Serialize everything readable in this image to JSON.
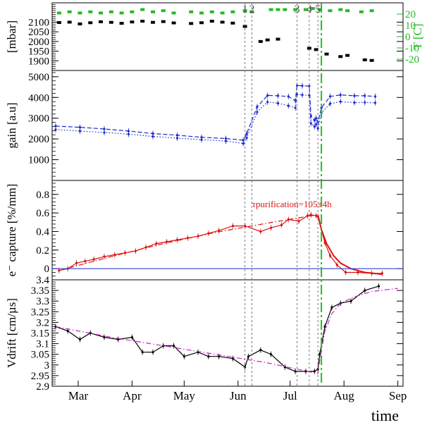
{
  "colors": {
    "pressure": "#000000",
    "temperature": "#22bb22",
    "gain_dashed": "#1a2acc",
    "gain_dotted": "#1a2acc",
    "capture": "#dd1111",
    "zero_line": "#3344cc",
    "vdrift_solid": "#000000",
    "vdrift_fit": "#cc22cc",
    "event_lines": "#777777",
    "event_green": "#22bb22"
  },
  "chart_data": {
    "type": "line",
    "x_unit": "month (day-of-year scale)",
    "x_ticks": [
      {
        "label": "Mar",
        "x": 61
      },
      {
        "label": "Apr",
        "x": 92
      },
      {
        "label": "May",
        "x": 122
      },
      {
        "label": "Jun",
        "x": 153
      },
      {
        "label": "Jul",
        "x": 183
      },
      {
        "label": "Aug",
        "x": 214
      },
      {
        "label": "Sep",
        "x": 245
      }
    ],
    "xlim": [
      46,
      248
    ],
    "xlabel": "time",
    "event_markers": [
      {
        "label": "1",
        "x": 157
      },
      {
        "label": "2",
        "x": 161
      },
      {
        "label": "3",
        "x": 187
      },
      {
        "label": "4",
        "x": 194
      },
      {
        "label": "5",
        "x": 199
      }
    ],
    "green_marker_x": 201,
    "panels": [
      {
        "id": "pressure_temperature",
        "ylabel": "[mbar]",
        "ylim": [
          1850,
          2200
        ],
        "yticks": [
          1900,
          1950,
          2000,
          2050,
          2100
        ],
        "ytick_labels": [
          "1900",
          "1950",
          "2000",
          "2050",
          "2100"
        ],
        "y2label": "T [C]",
        "y2lim": [
          -30,
          30
        ],
        "y2ticks": [
          -20,
          -10,
          0,
          10,
          20
        ],
        "series": [
          {
            "role": "pressure",
            "style": "markers",
            "x": [
              50,
              56,
              62,
              68,
              74,
              80,
              86,
              92,
              98,
              104,
              110,
              116,
              126,
              132,
              138,
              144,
              150,
              157,
              166,
              170,
              176,
              194,
              198,
              204,
              212,
              216,
              226,
              230
            ],
            "y": [
              2098,
              2100,
              2091,
              2097,
              2102,
              2099,
              2094,
              2101,
              2105,
              2099,
              2103,
              2096,
              2093,
              2097,
              2105,
              2100,
              2095,
              2078,
              2000,
              2008,
              2012,
              1965,
              1958,
              1935,
              1922,
              1928,
              1905,
              1902
            ]
          },
          {
            "role": "temperature",
            "style": "markers",
            "x": [
              50,
              56,
              62,
              68,
              74,
              80,
              86,
              92,
              98,
              104,
              110,
              116,
              126,
              132,
              138,
              144,
              150,
              157,
              161,
              172,
              176,
              180,
              186,
              192,
              196,
              200,
              206,
              212,
              216,
              224,
              230
            ],
            "y": [
              21,
              22,
              21,
              22,
              21,
              22,
              21,
              22,
              24,
              22,
              23,
              21,
              22,
              21,
              22,
              21,
              22,
              23,
              22,
              24,
              24,
              24,
              24,
              24,
              25,
              24,
              23,
              24,
              23,
              22,
              23
            ]
          }
        ]
      },
      {
        "id": "gain",
        "ylabel": "gain [a.u]",
        "ylim": [
          0,
          5300
        ],
        "yticks": [
          1000,
          2000,
          3000,
          4000,
          5000
        ],
        "series": [
          {
            "role": "gain_dashed",
            "style": "dashed",
            "x": [
              48,
              62,
              76,
              90,
              104,
              118,
              132,
              146,
              156,
              158,
              164,
              170,
              176,
              182,
              186,
              187,
              190,
              194,
              195,
              197,
              198,
              199,
              201,
              206,
              212,
              220,
              226,
              232
            ],
            "y": [
              2620,
              2560,
              2480,
              2380,
              2260,
              2180,
              2080,
              2020,
              1940,
              2250,
              3550,
              4100,
              4080,
              4050,
              3850,
              4580,
              4560,
              4550,
              3100,
              2900,
              3000,
              2800,
              3500,
              4050,
              4120,
              4080,
              4080,
              4050
            ]
          },
          {
            "role": "gain_dotted",
            "style": "dotted",
            "x": [
              48,
              62,
              76,
              90,
              104,
              118,
              132,
              146,
              156,
              158,
              164,
              170,
              176,
              182,
              186,
              187,
              190,
              194,
              195,
              197,
              198,
              199,
              201,
              206,
              212,
              220,
              226,
              232
            ],
            "y": [
              2450,
              2380,
              2310,
              2230,
              2120,
              2040,
              1960,
              1900,
              1780,
              2050,
              3300,
              3780,
              3720,
              3600,
              3500,
              4150,
              4120,
              4100,
              2750,
              2600,
              2700,
              2500,
              3250,
              3700,
              3800,
              3750,
              3760,
              3740
            ]
          }
        ]
      },
      {
        "id": "electron_capture",
        "ylabel": "e⁻ capture [%/mm]",
        "ylim": [
          -0.12,
          0.95
        ],
        "yticks": [
          0,
          0.2,
          0.4,
          0.6,
          0.8
        ],
        "ytick_labels": [
          "0",
          "0.2",
          "0.4",
          "0.6",
          "0.8"
        ],
        "annotation": "τpurification=105±4h",
        "series": [
          {
            "role": "capture_measured",
            "style": "solid",
            "x": [
              50,
              55,
              60,
              65,
              70,
              76,
              82,
              88,
              94,
              100,
              106,
              112,
              118,
              124,
              130,
              136,
              142,
              150,
              157,
              166,
              172,
              178,
              182,
              188,
              193,
              195,
              198,
              199,
              203,
              206,
              210,
              215,
              222,
              230,
              236
            ],
            "y": [
              -0.02,
              0.0,
              0.06,
              0.08,
              0.1,
              0.13,
              0.15,
              0.17,
              0.19,
              0.23,
              0.27,
              0.29,
              0.31,
              0.33,
              0.35,
              0.38,
              0.41,
              0.46,
              0.46,
              0.4,
              0.44,
              0.47,
              0.53,
              0.51,
              0.57,
              0.58,
              0.57,
              0.56,
              0.28,
              0.14,
              0.04,
              -0.04,
              -0.04,
              -0.05,
              -0.05
            ]
          },
          {
            "role": "capture_fit",
            "style": "dashdot",
            "x": [
              50,
              80,
              110,
              140,
              170,
              195,
              199
            ],
            "y": [
              -0.02,
              0.13,
              0.27,
              0.39,
              0.49,
              0.57,
              0.58
            ]
          },
          {
            "role": "purification_fit",
            "style": "solid",
            "x": [
              199,
              201,
              204,
              208,
              212,
              218,
              226,
              236
            ],
            "y": [
              0.58,
              0.42,
              0.27,
              0.14,
              0.06,
              0.0,
              -0.04,
              -0.06
            ]
          },
          {
            "role": "zero_line",
            "style": "solid",
            "x": [
              46,
              248
            ],
            "y": [
              0,
              0
            ]
          }
        ]
      },
      {
        "id": "vdrift",
        "ylabel": "Vdrift [cm/µs]",
        "ylim": [
          2.9,
          3.4
        ],
        "yticks": [
          2.9,
          2.95,
          3.0,
          3.05,
          3.1,
          3.15,
          3.2,
          3.25,
          3.3,
          3.35,
          3.4
        ],
        "ytick_labels": [
          "2.9",
          "2.95",
          "3",
          "3.05",
          "3.1",
          "3.15",
          "3.2",
          "3.25",
          "3.3",
          "3.35",
          "3.4"
        ],
        "series": [
          {
            "role": "vdrift_measured",
            "style": "solid",
            "x": [
              48,
              55,
              62,
              68,
              76,
              84,
              92,
              98,
              104,
              110,
              116,
              122,
              130,
              136,
              142,
              150,
              157,
              159,
              166,
              172,
              180,
              186,
              192,
              197,
              199,
              200,
              203,
              207,
              212,
              218,
              226,
              234
            ],
            "y": [
              3.18,
              3.16,
              3.12,
              3.15,
              3.13,
              3.12,
              3.13,
              3.06,
              3.06,
              3.09,
              3.09,
              3.04,
              3.06,
              3.04,
              3.04,
              3.03,
              2.99,
              3.04,
              3.07,
              3.05,
              2.99,
              2.97,
              2.97,
              2.97,
              2.98,
              3.05,
              3.18,
              3.27,
              3.29,
              3.3,
              3.35,
              3.37
            ]
          },
          {
            "role": "vdrift_fit",
            "style": "dashdot",
            "x": [
              48,
              80,
              110,
              140,
              170,
              190,
              199,
              200,
              203,
              207,
              212,
              220,
              230,
              245
            ],
            "y": [
              3.18,
              3.13,
              3.09,
              3.05,
              3.01,
              2.975,
              2.96,
              3.02,
              3.16,
              3.24,
              3.29,
              3.32,
              3.345,
              3.36
            ]
          }
        ]
      }
    ]
  }
}
